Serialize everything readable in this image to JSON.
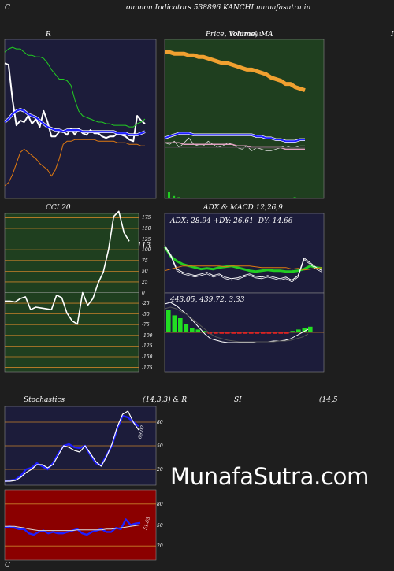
{
  "header": {
    "left_letter": "C",
    "title": "ommon  Indicators 538896  KANCHI munafasutra.in"
  },
  "panels": {
    "rsi_title": "R",
    "price_title_a": "Price,  ",
    "price_title_b": "Volume,",
    "price_title_c": "MA",
    "price_title_overlap": "Ichimoku",
    "cci_title": "CCI 20",
    "cci_value": "113",
    "adx_title": "ADX  & MACD 12,26,9",
    "adx_readout": "ADX: 28.94   +DY: 26.61 -DY: 14.66",
    "macd_readout": "443.05,  439.72,  3.33",
    "stoch_title": "Stochastics",
    "stoch_params": "(14,3,3) & R",
    "si_title": "SI",
    "si_params": "(14,5",
    "stoch_value": "69.07",
    "si_value": "51.65",
    "right_edge": "I",
    "bottom_letter": "C"
  },
  "watermark": "MunafaSutra.com",
  "colors": {
    "page_bg": "#1e1e1e",
    "navy_panel": "#1c1c3a",
    "green_panel": "#1f3f1f",
    "red_panel": "#8b0000",
    "grid_orange": "#c8812a",
    "line_blue": "#1e1eff",
    "line_green": "#22cc22",
    "line_white": "#ffffff",
    "line_orange": "#e07a10"
  },
  "chart_data": [
    {
      "type": "line",
      "id": "rsi",
      "title": "R",
      "x": [
        0,
        1,
        2,
        3,
        4,
        5,
        6,
        7,
        8,
        9,
        10,
        11,
        12,
        13,
        14,
        15,
        16,
        17,
        18,
        19,
        20,
        21,
        22,
        23,
        24,
        25,
        26,
        27,
        28,
        29,
        30,
        31,
        32,
        33,
        34,
        35,
        36
      ],
      "series": [
        {
          "role": "rsi",
          "values": [
            85,
            84,
            62,
            46,
            49,
            48,
            52,
            47,
            50,
            45,
            55,
            48,
            39,
            39,
            42,
            42,
            40,
            44,
            40,
            44,
            41,
            40,
            43,
            41,
            41,
            39,
            38,
            39,
            39,
            41,
            40,
            39,
            37,
            36,
            52,
            49,
            47
          ]
        },
        {
          "role": "ma-green",
          "values": [
            92,
            94,
            95,
            94,
            94,
            92,
            90,
            90,
            89,
            89,
            88,
            85,
            81,
            78,
            75,
            75,
            74,
            71,
            62,
            55,
            52,
            51,
            50,
            49,
            48,
            48,
            47,
            47,
            46,
            46,
            46,
            46,
            45,
            45,
            47,
            48,
            50
          ]
        },
        {
          "role": "ma-blue",
          "values": [
            48,
            50,
            53,
            55,
            56,
            55,
            53,
            52,
            51,
            49,
            47,
            45,
            44,
            43,
            43,
            42,
            43,
            43,
            43,
            43,
            42,
            42,
            42,
            42,
            42,
            42,
            42,
            42,
            42,
            41,
            41,
            41,
            40,
            40,
            40,
            41,
            42
          ]
        },
        {
          "role": "ma-orange",
          "values": [
            8,
            10,
            15,
            22,
            29,
            31,
            29,
            27,
            25,
            22,
            20,
            18,
            14,
            18,
            25,
            34,
            36,
            36,
            37,
            37,
            37,
            37,
            37,
            37,
            36,
            36,
            36,
            36,
            36,
            35,
            35,
            35,
            34,
            34,
            34,
            33,
            33
          ]
        }
      ]
    },
    {
      "type": "line",
      "id": "price",
      "series": [
        {
          "role": "price-orange",
          "values": [
            92,
            92,
            91,
            91,
            91,
            90,
            90,
            89,
            89,
            88,
            87,
            86,
            85,
            85,
            84,
            83,
            82,
            81,
            81,
            80,
            79,
            78,
            76,
            75,
            74,
            72,
            72,
            70,
            69,
            68
          ]
        },
        {
          "role": "price-white",
          "values": [
            35,
            34,
            36,
            32,
            35,
            38,
            34,
            33,
            33,
            36,
            34,
            32,
            33,
            35,
            34,
            32,
            31,
            33,
            30,
            32,
            31,
            30,
            30,
            31,
            32,
            33,
            32,
            32,
            33,
            33
          ]
        },
        {
          "role": "ma-blue",
          "values": [
            38,
            39,
            40,
            41,
            41,
            41,
            40,
            40,
            40,
            40,
            40,
            40,
            40,
            40,
            40,
            40,
            40,
            40,
            40,
            39,
            39,
            38,
            38,
            37,
            37,
            36,
            36,
            36,
            37,
            37
          ]
        },
        {
          "role": "ma-pink",
          "values": [
            35,
            35,
            35,
            35,
            34,
            34,
            34,
            34,
            34,
            34,
            34,
            34,
            34,
            34,
            34,
            33,
            33,
            33,
            32,
            32,
            32,
            32,
            32,
            32,
            32,
            31,
            31,
            31,
            31,
            31
          ]
        },
        {
          "role": "ma-dark",
          "values": [
            32,
            32,
            32,
            32,
            32,
            32,
            32,
            32,
            32,
            32,
            32,
            32,
            32,
            32,
            32,
            32,
            32,
            32,
            32,
            32,
            32,
            32,
            32,
            32,
            32,
            32,
            32,
            32,
            32,
            32
          ]
        }
      ],
      "volume": [
        5,
        2,
        1,
        0,
        0,
        0,
        0,
        0,
        0,
        0,
        0,
        0,
        0,
        0,
        0,
        0,
        0,
        0,
        0,
        0,
        0,
        0,
        0,
        0,
        0,
        0,
        1,
        0,
        0,
        0
      ]
    },
    {
      "type": "line",
      "id": "cci",
      "title": "CCI 20",
      "yticks": [
        175,
        150,
        125,
        100,
        75,
        50,
        25,
        0,
        -25,
        -50,
        -75,
        -100,
        -125,
        -150,
        -175
      ],
      "ylim": [
        -185,
        185
      ],
      "series": [
        {
          "role": "cci",
          "values": [
            -20,
            -20,
            -22,
            -14,
            -10,
            -40,
            -34,
            -36,
            -38,
            -40,
            -6,
            -12,
            -48,
            -66,
            -74,
            0,
            -30,
            -14,
            22,
            48,
            100,
            178,
            190,
            140,
            120
          ]
        }
      ]
    },
    {
      "type": "line",
      "id": "adx",
      "series": [
        {
          "role": "adx-green",
          "values": [
            58,
            46,
            40,
            36,
            34,
            32,
            30,
            31,
            30,
            32,
            33,
            34,
            32,
            30,
            28,
            27,
            28,
            29,
            28,
            28,
            27,
            27,
            28,
            30,
            34,
            32,
            31
          ]
        },
        {
          "role": "+dy-white",
          "values": [
            60,
            48,
            30,
            26,
            24,
            22,
            24,
            26,
            22,
            24,
            20,
            18,
            19,
            22,
            24,
            21,
            20,
            22,
            20,
            18,
            20,
            16,
            22,
            44,
            38,
            32,
            28
          ]
        },
        {
          "role": "-dy-orange",
          "values": [
            28,
            30,
            32,
            34,
            34,
            34,
            34,
            34,
            34,
            34,
            33,
            34,
            34,
            34,
            34,
            33,
            32,
            32,
            32,
            32,
            32,
            30,
            31,
            29,
            30,
            31,
            32
          ]
        }
      ]
    },
    {
      "type": "bar",
      "id": "macd",
      "series": [
        {
          "role": "macd-white",
          "values": [
            86,
            88,
            84,
            78,
            72,
            64,
            56,
            48,
            42,
            40,
            38,
            37,
            37,
            37,
            37,
            37,
            38,
            38,
            38,
            39,
            39,
            40,
            42,
            46,
            50,
            54
          ]
        },
        {
          "role": "signal-dark",
          "values": [
            80,
            82,
            80,
            76,
            72,
            66,
            60,
            54,
            48,
            44,
            42,
            40,
            39,
            38,
            38,
            38,
            38,
            38,
            38,
            38,
            39,
            39,
            40,
            42,
            44,
            48
          ]
        },
        {
          "role": "histogram",
          "values": [
            16,
            12,
            10,
            6,
            3,
            2,
            1,
            -1,
            -1,
            -1,
            -1,
            -1,
            -1,
            -1,
            -1,
            -1,
            -1,
            -1,
            -1,
            -1,
            -1,
            1,
            2,
            3,
            4
          ]
        }
      ]
    },
    {
      "type": "line",
      "id": "stochastics",
      "title": "Stochastics",
      "yticks": [
        80,
        50,
        20
      ],
      "series": [
        {
          "role": "%K-blue",
          "values": [
            5,
            6,
            7,
            12,
            20,
            22,
            28,
            24,
            20,
            28,
            40,
            50,
            52,
            48,
            47,
            50,
            38,
            28,
            25,
            38,
            50,
            72,
            88,
            86,
            80,
            75
          ]
        },
        {
          "role": "%D-white",
          "values": [
            5,
            5,
            6,
            10,
            16,
            20,
            26,
            26,
            22,
            26,
            38,
            50,
            48,
            44,
            42,
            50,
            40,
            30,
            24,
            36,
            52,
            74,
            90,
            94,
            80,
            70
          ]
        }
      ]
    },
    {
      "type": "line",
      "id": "rsi-lower",
      "title": "SI",
      "yticks": [
        80,
        50,
        20
      ],
      "series": [
        {
          "role": "rsi-blue",
          "values": [
            46,
            48,
            46,
            44,
            44,
            38,
            36,
            40,
            42,
            38,
            40,
            38,
            38,
            40,
            42,
            44,
            38,
            36,
            40,
            42,
            44,
            40,
            40,
            46,
            44,
            58,
            50,
            52,
            53
          ]
        },
        {
          "role": "ma-white",
          "values": [
            48,
            48,
            48,
            47,
            46,
            44,
            43,
            42,
            42,
            42,
            42,
            42,
            42,
            42,
            42,
            43,
            43,
            43,
            43,
            43,
            43,
            44,
            44,
            45,
            46,
            47,
            48,
            49,
            50
          ]
        }
      ]
    }
  ]
}
